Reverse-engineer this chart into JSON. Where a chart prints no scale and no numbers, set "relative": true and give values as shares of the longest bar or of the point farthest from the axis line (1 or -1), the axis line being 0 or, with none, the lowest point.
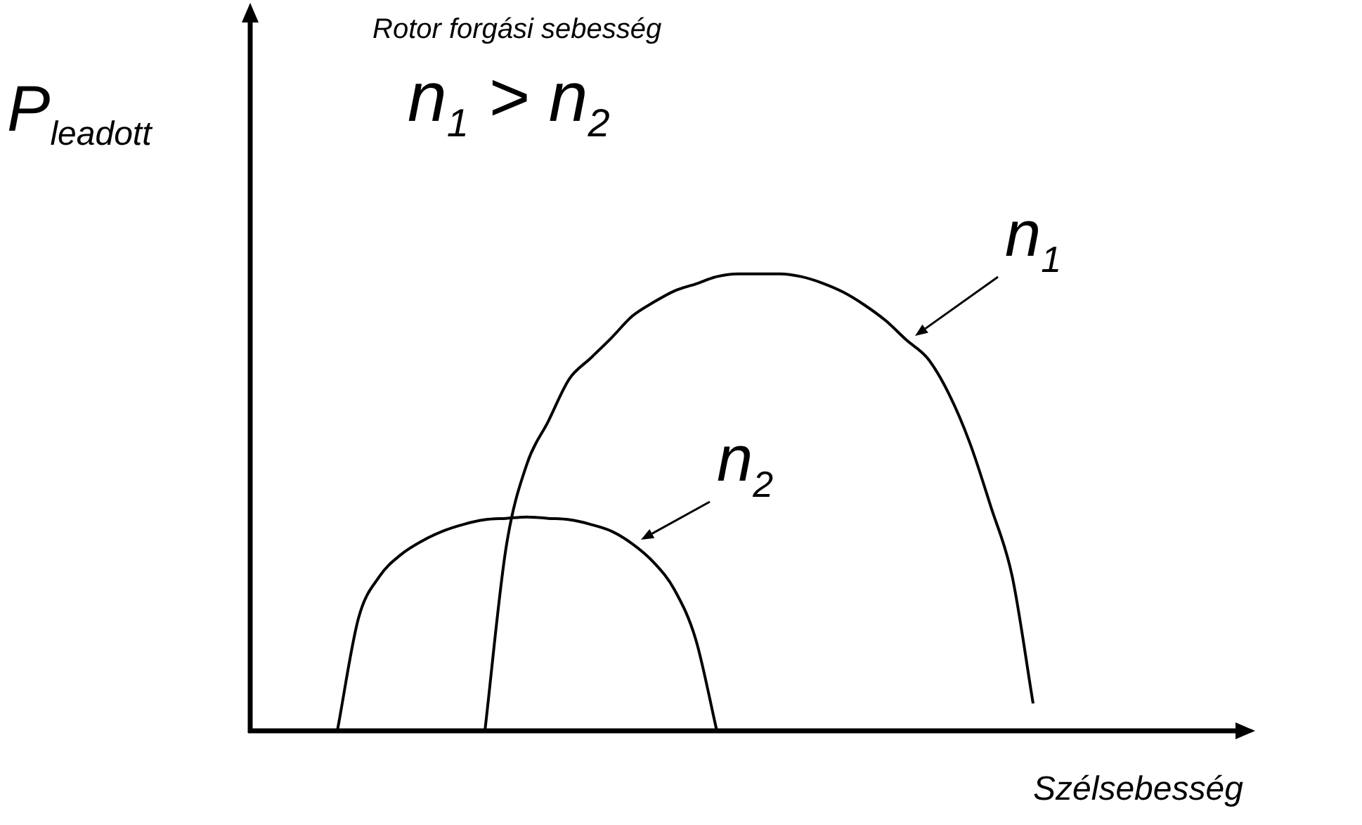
{
  "chart_data": {
    "type": "line",
    "title": "Rotor forgási sebesség",
    "xlabel": "Szélsebesség",
    "ylabel": "P$_{leadott}$",
    "annotations": [
      "n$_{1}$ > n$_{2}$"
    ],
    "relative": true,
    "marker": "none",
    "line_style": "solid",
    "categories": [
      null,
      null,
      null,
      null,
      null,
      null,
      null,
      null,
      null,
      null,
      null,
      null,
      null,
      null,
      null,
      null,
      null,
      null,
      null,
      null,
      null,
      null,
      null,
      null,
      null,
      null,
      null,
      null,
      null,
      null,
      null,
      null,
      null,
      null,
      null,
      null,
      null,
      null,
      null,
      null,
      null,
      null,
      null,
      null,
      null,
      null,
      null
    ],
    "series": [
      {
        "name": "n$_{1}$",
        "color": "#000000",
        "values": [
          null,
          null,
          null,
          null,
          null,
          null,
          null,
          null,
          null,
          null,
          null,
          0,
          0.4,
          0.585,
          0.677,
          0.77,
          0.815,
          0.86,
          0.908,
          0.938,
          0.963,
          0.978,
          0.994,
          1,
          1,
          1,
          0.994,
          0.98,
          0.96,
          0.932,
          0.898,
          0.855,
          0.815,
          0.738,
          0.63,
          0.49,
          0.34,
          0.06,
          null,
          null,
          null,
          null,
          null,
          null,
          null,
          null,
          null
        ]
      },
      {
        "name": "n$_{2}$",
        "color": "#000000",
        "values": [
          null,
          null,
          null,
          null,
          0,
          0.246,
          0.338,
          0.385,
          0.415,
          0.437,
          0.452,
          0.462,
          0.465,
          0.468,
          0.465,
          0.462,
          0.452,
          0.437,
          0.409,
          0.369,
          0.308,
          0.2,
          0,
          null,
          null,
          null,
          null,
          null,
          null,
          null,
          null,
          null,
          null,
          null,
          null,
          null,
          null,
          null,
          null,
          null,
          null,
          null,
          null,
          null,
          null,
          null,
          null
        ]
      }
    ]
  }
}
